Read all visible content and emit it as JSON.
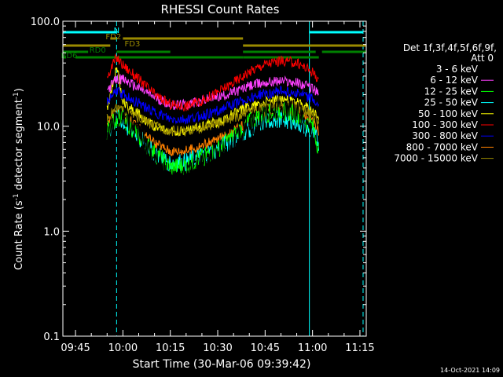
{
  "chart_data": {
    "type": "line",
    "title": "RHESSI Count Rates",
    "xlabel": "Start Time (30-Mar-06 09:39:42)",
    "ylabel_main": "Count Rate (s",
    "ylabel_sup1": "-1",
    "ylabel_mid": " detector segment",
    "ylabel_sup2": "-1",
    "ylabel_end": ")",
    "y_scale": "log",
    "ylim": [
      0.1,
      100
    ],
    "xlim": [
      "09:41:00",
      "11:17:00"
    ],
    "xticks": [
      "09:45",
      "10:00",
      "10:15",
      "10:30",
      "10:45",
      "11:00",
      "11:15"
    ],
    "yticks": [
      "0.1",
      "1.0",
      "10.0",
      "100.0"
    ],
    "legend_title": "Det 1f,3f,4f,5f,6f,9f,",
    "legend_subtitle": "Att 0",
    "legend_position": "right",
    "series": [
      {
        "name": "3 - 6 keV",
        "color": "#000000",
        "x": [
          "09:55",
          "09:58",
          "10:00",
          "10:05",
          "10:10",
          "10:15",
          "10:20",
          "10:25",
          "10:30",
          "10:35",
          "10:40",
          "10:45",
          "10:50",
          "10:55",
          "11:00",
          "11:02"
        ],
        "values": [
          8,
          12,
          13,
          9,
          5,
          3,
          3.2,
          4.5,
          5.5,
          7,
          10,
          13,
          14.5,
          13.5,
          9,
          3
        ]
      },
      {
        "name": "6 - 12 keV",
        "color": "#ff40ff",
        "x": [
          "09:55",
          "09:58",
          "10:00",
          "10:05",
          "10:10",
          "10:15",
          "10:20",
          "10:25",
          "10:30",
          "10:35",
          "10:40",
          "10:45",
          "10:50",
          "10:55",
          "11:00",
          "11:02"
        ],
        "values": [
          22,
          28,
          28,
          23,
          19,
          16,
          16,
          17.5,
          19,
          21,
          24,
          26,
          27,
          26,
          23,
          20
        ]
      },
      {
        "name": "12 - 25 keV",
        "color": "#00ff00",
        "x": [
          "09:55",
          "09:58",
          "10:00",
          "10:05",
          "10:10",
          "10:15",
          "10:20",
          "10:25",
          "10:30",
          "10:35",
          "10:40",
          "10:45",
          "10:50",
          "10:55",
          "11:00",
          "11:02"
        ],
        "values": [
          9,
          12,
          12,
          8,
          5.5,
          4,
          4.2,
          5,
          6,
          8,
          11,
          13,
          14,
          13,
          10,
          6
        ]
      },
      {
        "name": "25 - 50 keV",
        "color": "#00ffff",
        "x": [
          "09:55",
          "09:58",
          "10:00",
          "10:05",
          "10:10",
          "10:15",
          "10:20",
          "10:25",
          "10:30",
          "10:35",
          "10:40",
          "10:45",
          "10:50",
          "10:55",
          "11:00",
          "11:02"
        ],
        "values": [
          8,
          12,
          11,
          8,
          5.5,
          4.5,
          4.5,
          5.2,
          6,
          7.5,
          9.5,
          11,
          12,
          11,
          8.5,
          7
        ]
      },
      {
        "name": "50 - 100 keV",
        "color": "#ffff00",
        "x": [
          "09:55",
          "09:58",
          "10:00",
          "10:05",
          "10:10",
          "10:15",
          "10:20",
          "10:25",
          "10:30",
          "10:35",
          "10:40",
          "10:45",
          "10:50",
          "10:55",
          "11:00",
          "11:02"
        ],
        "values": [
          14,
          38,
          17,
          13,
          10,
          9,
          9,
          10,
          11,
          13,
          15.5,
          17,
          18,
          17,
          14,
          12
        ]
      },
      {
        "name": "100 - 300 keV",
        "color": "#ff0000",
        "x": [
          "09:55",
          "09:58",
          "10:00",
          "10:05",
          "10:10",
          "10:15",
          "10:20",
          "10:25",
          "10:30",
          "10:35",
          "10:40",
          "10:45",
          "10:50",
          "10:55",
          "11:00",
          "11:02"
        ],
        "values": [
          30,
          45,
          38,
          28,
          20,
          16,
          15.5,
          17.5,
          21,
          26,
          33,
          39,
          42,
          40,
          33,
          28
        ]
      },
      {
        "name": "300 - 800 keV",
        "color": "#0000ff",
        "x": [
          "09:55",
          "09:58",
          "10:00",
          "10:05",
          "10:10",
          "10:15",
          "10:20",
          "10:25",
          "10:30",
          "10:35",
          "10:40",
          "10:45",
          "10:50",
          "10:55",
          "11:00",
          "11:02"
        ],
        "values": [
          17,
          22,
          20,
          16.5,
          13.5,
          11.5,
          11.5,
          12.5,
          14,
          16,
          18.5,
          20.5,
          21.5,
          21,
          18,
          15
        ]
      },
      {
        "name": "800 - 7000 keV",
        "color": "#ff8000",
        "x": [
          "09:55",
          "09:58",
          "10:00",
          "10:05",
          "10:10",
          "10:15",
          "10:20",
          "10:25",
          "10:30",
          "10:35",
          "10:40",
          "10:45",
          "10:50",
          "10:55",
          "11:00",
          "11:02"
        ],
        "values": [
          11,
          14,
          13,
          9.5,
          7,
          5.8,
          5.8,
          6.5,
          7.5,
          9,
          11,
          13,
          14,
          13.5,
          11,
          9
        ]
      },
      {
        "name": "7000 - 15000 keV",
        "color": "#9a8a00",
        "x": [
          "09:55",
          "09:58",
          "10:00",
          "10:05",
          "10:10",
          "10:15",
          "10:20",
          "10:25",
          "10:30",
          "10:35",
          "10:40",
          "10:45",
          "10:50",
          "10:55",
          "11:00",
          "11:02"
        ],
        "values": [
          12,
          15,
          14,
          12,
          10,
          9,
          9,
          9.5,
          10.5,
          12,
          14,
          15.5,
          16,
          15.5,
          13,
          11
        ]
      }
    ],
    "vertical_lines": [
      {
        "x": "09:41:00",
        "style": "solid",
        "color": "#00ffff"
      },
      {
        "x": "09:58:00",
        "style": "dashed",
        "color": "#00ffff"
      },
      {
        "x": "10:59:00",
        "style": "solid",
        "color": "#00ffff"
      },
      {
        "x": "11:16:00",
        "style": "dashed",
        "color": "#00ffff"
      }
    ],
    "flag_bars": [
      {
        "label": "",
        "color": "#00ffff",
        "level": 0,
        "segments": [
          [
            "09:41:00",
            "09:58:00"
          ],
          [
            "10:59:00",
            "11:16:00"
          ]
        ]
      },
      {
        "label": "N",
        "color": "#00ffff",
        "level": 0,
        "label_at": "09:58:00"
      },
      {
        "label": "FD2",
        "color": "#9a8a00",
        "level": 1,
        "segments": [
          [
            "09:56:00",
            "09:58:00"
          ],
          [
            "10:00:00",
            "10:38:00"
          ]
        ],
        "label_at": "09:57:00"
      },
      {
        "label": "FD3",
        "color": "#9a8a00",
        "level": 2,
        "segments": [
          [
            "09:41:00",
            "09:56:00"
          ],
          [
            "10:38:00",
            "11:17:00"
          ]
        ],
        "label_at": "10:03:00"
      },
      {
        "label": "RD0",
        "color": "#008000",
        "level": 3,
        "segments": [
          [
            "09:41:00",
            "09:49:00"
          ],
          [
            "09:58:00",
            "10:15:00"
          ],
          [
            "10:38:00",
            "11:01:00"
          ],
          [
            "11:03:00",
            "11:17:00"
          ]
        ],
        "label_at": "09:52:00"
      },
      {
        "label": "BD6",
        "color": "#008000",
        "level": 4,
        "segments": [
          [
            "09:41:00",
            "09:42:00"
          ],
          [
            "09:45:00",
            "10:38:00"
          ],
          [
            "10:38:00",
            "11:02:00"
          ]
        ],
        "label_at": "09:43:00"
      }
    ]
  },
  "footer_timestamp": "14-Oct-2021 14:09"
}
